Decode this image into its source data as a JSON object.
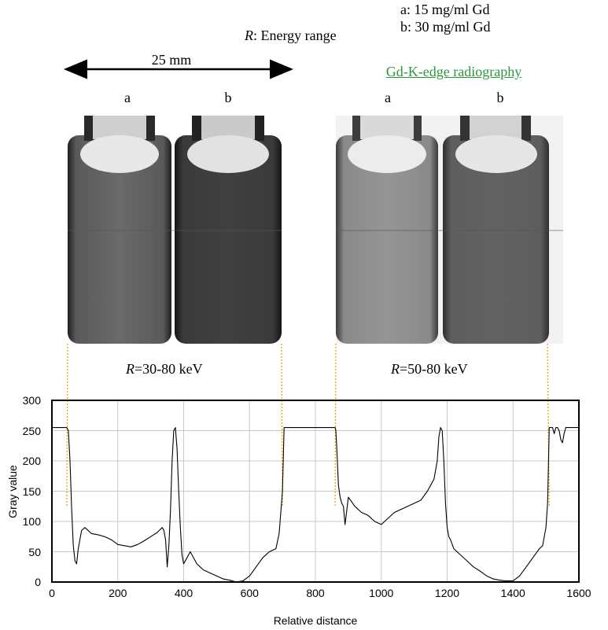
{
  "legend": {
    "a": "a: 15 mg/ml Gd",
    "b": "b: 30 mg/ml Gd"
  },
  "energy_range": {
    "symbol": "R",
    "label": ": Energy range"
  },
  "scale_bar": {
    "label": "25 mm"
  },
  "gd_title": "Gd-K-edge radiography",
  "panel_labels": {
    "left_a": "a",
    "left_b": "b",
    "right_a": "a",
    "right_b": "b"
  },
  "ranges": {
    "left": {
      "symbol": "R",
      "value": "=30-80 keV"
    },
    "right": {
      "symbol": "R",
      "value": "=50-80 keV"
    }
  },
  "colors": {
    "guide_lines": "#e6a800",
    "plot_line": "#000000",
    "gridline": "#c8c8c8",
    "title_green": "#2a9a3c"
  },
  "chart_data": {
    "type": "line",
    "xlabel": "Relative distance",
    "ylabel": "Gray value",
    "xlim": [
      0,
      1600
    ],
    "ylim": [
      0,
      300
    ],
    "x_ticks": [
      "0",
      "200",
      "400",
      "600",
      "800",
      "1000",
      "1200",
      "1400",
      "1600"
    ],
    "y_ticks": [
      "0",
      "50",
      "100",
      "150",
      "200",
      "250",
      "300"
    ],
    "grid": true,
    "series": [
      {
        "x": [
          0,
          45,
          50,
          55,
          60,
          65,
          70,
          75,
          80,
          90,
          100,
          120,
          140,
          160,
          180,
          200,
          220,
          240,
          260,
          280,
          300,
          320,
          335,
          340,
          345,
          350,
          355,
          360,
          365,
          370,
          375,
          380,
          385,
          390,
          395,
          400,
          410,
          420,
          440,
          460,
          480,
          500,
          520,
          540,
          560,
          580,
          600,
          620,
          640,
          660,
          680,
          690,
          700,
          705,
          860,
          862,
          865,
          870,
          875,
          880,
          885,
          890,
          900,
          920,
          940,
          960,
          980,
          1000,
          1020,
          1040,
          1060,
          1080,
          1100,
          1120,
          1140,
          1160,
          1170,
          1175,
          1180,
          1185,
          1190,
          1195,
          1200,
          1205,
          1210,
          1220,
          1240,
          1260,
          1280,
          1300,
          1320,
          1340,
          1360,
          1380,
          1400,
          1420,
          1440,
          1460,
          1480,
          1490,
          1500,
          1505,
          1510,
          1520,
          1525,
          1530,
          1535,
          1540,
          1545,
          1550,
          1555,
          1560,
          1600
        ],
        "y": [
          255,
          255,
          250,
          200,
          120,
          60,
          35,
          30,
          55,
          85,
          90,
          80,
          78,
          75,
          70,
          62,
          60,
          58,
          62,
          68,
          75,
          82,
          90,
          85,
          70,
          25,
          60,
          120,
          200,
          250,
          255,
          220,
          150,
          90,
          45,
          30,
          40,
          50,
          30,
          20,
          15,
          10,
          5,
          3,
          0,
          2,
          10,
          25,
          40,
          50,
          55,
          80,
          150,
          255,
          255,
          250,
          220,
          160,
          140,
          130,
          125,
          95,
          140,
          125,
          115,
          110,
          100,
          95,
          105,
          115,
          120,
          125,
          130,
          135,
          150,
          170,
          200,
          240,
          255,
          250,
          200,
          130,
          90,
          75,
          70,
          55,
          45,
          35,
          25,
          18,
          10,
          5,
          3,
          2,
          2,
          10,
          25,
          40,
          55,
          60,
          90,
          130,
          255,
          255,
          245,
          255,
          255,
          250,
          235,
          230,
          245,
          255,
          255
        ]
      }
    ]
  }
}
